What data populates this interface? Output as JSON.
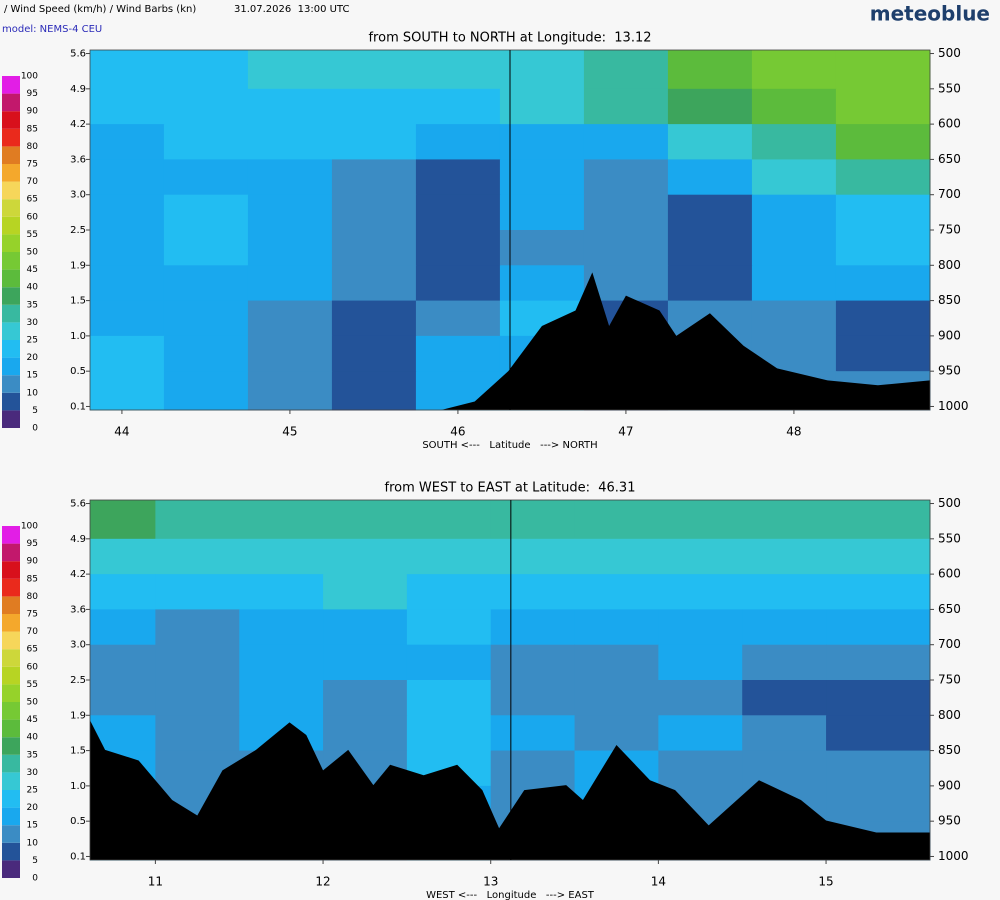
{
  "header": {
    "title": "/ Wind Speed (km/h) / Wind Barbs (kn)",
    "time": "31.07.2026  13:00 UTC",
    "model": "model: NEMS-4 CEU",
    "brand": "meteoblue"
  },
  "chart_data": [
    {
      "type": "contour",
      "title": "from SOUTH to NORTH at Longitude:  13.12",
      "x_label": "SOUTH <---   Latitude   ---> NORTH",
      "xlim": [
        43.81,
        48.81
      ],
      "xticks": [
        44,
        45,
        46,
        47,
        48
      ],
      "ylim": [
        1005,
        495
      ],
      "yticks": [
        500,
        550,
        600,
        650,
        700,
        750,
        800,
        850,
        900,
        950,
        1000
      ],
      "height_ticks": [
        {
          "value": 500,
          "label": "5.6"
        },
        {
          "value": 550,
          "label": "4.9"
        },
        {
          "value": 600,
          "label": "4.2"
        },
        {
          "value": 650,
          "label": "3.6"
        },
        {
          "value": 700,
          "label": "3.0"
        },
        {
          "value": 750,
          "label": "2.5"
        },
        {
          "value": 800,
          "label": "1.9"
        },
        {
          "value": 850,
          "label": "1.5"
        },
        {
          "value": 900,
          "label": "1.0"
        },
        {
          "value": 950,
          "label": "0.5"
        },
        {
          "value": 1000,
          "label": "0.1"
        }
      ],
      "crossing_x": 46.31,
      "field": {
        "x": [
          44.0,
          44.5,
          45.0,
          45.5,
          46.0,
          46.5,
          47.0,
          47.5,
          48.0,
          48.5
        ],
        "p": [
          525,
          575,
          625,
          675,
          725,
          775,
          825,
          875,
          925,
          975
        ],
        "values": [
          [
            20,
            20,
            25,
            25,
            25,
            25,
            30,
            40,
            45,
            45
          ],
          [
            20,
            20,
            20,
            20,
            20,
            25,
            30,
            35,
            40,
            45
          ],
          [
            15,
            20,
            20,
            20,
            15,
            15,
            15,
            25,
            30,
            40
          ],
          [
            15,
            15,
            15,
            10,
            5,
            15,
            10,
            15,
            25,
            30
          ],
          [
            15,
            20,
            15,
            10,
            5,
            15,
            10,
            5,
            15,
            20
          ],
          [
            15,
            20,
            15,
            10,
            5,
            10,
            10,
            5,
            15,
            20
          ],
          [
            15,
            15,
            15,
            10,
            5,
            15,
            10,
            5,
            15,
            15
          ],
          [
            15,
            15,
            10,
            5,
            10,
            20,
            5,
            10,
            10,
            5
          ],
          [
            20,
            15,
            10,
            5,
            15,
            15,
            5,
            10,
            10,
            5
          ],
          [
            20,
            15,
            10,
            5,
            15,
            15,
            5,
            10,
            10,
            10
          ]
        ]
      },
      "terrain": {
        "x": [
          43.81,
          45.9,
          46.1,
          46.3,
          46.5,
          46.7,
          46.8,
          46.9,
          47.0,
          47.2,
          47.3,
          47.5,
          47.7,
          47.9,
          48.2,
          48.5,
          48.81
        ],
        "p": [
          1005,
          1005,
          993,
          950,
          886,
          864,
          810,
          886,
          843,
          864,
          900,
          868,
          914,
          946,
          963,
          970,
          963
        ]
      },
      "colorscale": {
        "levels": [
          0,
          5,
          10,
          15,
          20,
          25,
          30,
          35,
          40,
          45,
          50,
          55,
          60,
          65,
          70,
          75,
          80,
          85,
          90,
          95,
          100
        ],
        "colors": [
          "#4a2a7c",
          "#235399",
          "#3b8cc4",
          "#19a8ee",
          "#22bdf2",
          "#36c8d4",
          "#38b9a0",
          "#3da55c",
          "#5cbb3c",
          "#76c934",
          "#96d22a",
          "#b7d423",
          "#cdd73a",
          "#f6d65a",
          "#f4a82c",
          "#e07c22",
          "#ea2a1c",
          "#d8101c",
          "#c2186c",
          "#e21ee6"
        ]
      }
    },
    {
      "type": "contour",
      "title": "from WEST to EAST at Latitude:  46.31",
      "x_label": "WEST <---   Longitude   ---> EAST",
      "xlim": [
        10.61,
        15.62
      ],
      "xticks": [
        11,
        12,
        13,
        14,
        15
      ],
      "ylim": [
        1005,
        495
      ],
      "yticks": [
        500,
        550,
        600,
        650,
        700,
        750,
        800,
        850,
        900,
        950,
        1000
      ],
      "height_ticks": [
        {
          "value": 500,
          "label": "5.6"
        },
        {
          "value": 550,
          "label": "4.9"
        },
        {
          "value": 600,
          "label": "4.2"
        },
        {
          "value": 650,
          "label": "3.6"
        },
        {
          "value": 700,
          "label": "3.0"
        },
        {
          "value": 750,
          "label": "2.5"
        },
        {
          "value": 800,
          "label": "1.9"
        },
        {
          "value": 850,
          "label": "1.5"
        },
        {
          "value": 900,
          "label": "1.0"
        },
        {
          "value": 950,
          "label": "0.5"
        },
        {
          "value": 1000,
          "label": "0.1"
        }
      ],
      "crossing_x": 13.12,
      "field": {
        "x": [
          10.75,
          11.25,
          11.75,
          12.25,
          12.75,
          13.25,
          13.75,
          14.25,
          14.75,
          15.25
        ],
        "p": [
          525,
          575,
          625,
          675,
          725,
          775,
          825,
          875,
          925,
          975
        ],
        "values": [
          [
            35,
            30,
            30,
            30,
            30,
            30,
            30,
            30,
            30,
            30
          ],
          [
            25,
            25,
            25,
            25,
            25,
            25,
            25,
            25,
            25,
            25
          ],
          [
            20,
            20,
            20,
            25,
            20,
            20,
            20,
            20,
            20,
            20
          ],
          [
            15,
            10,
            15,
            15,
            20,
            15,
            15,
            15,
            15,
            15
          ],
          [
            10,
            10,
            15,
            15,
            15,
            10,
            10,
            15,
            10,
            10
          ],
          [
            10,
            10,
            15,
            10,
            20,
            10,
            10,
            10,
            5,
            5
          ],
          [
            15,
            10,
            15,
            10,
            20,
            15,
            10,
            15,
            10,
            5
          ],
          [
            15,
            10,
            10,
            10,
            20,
            10,
            15,
            10,
            10,
            10
          ],
          [
            15,
            10,
            10,
            10,
            15,
            10,
            15,
            10,
            10,
            10
          ],
          [
            15,
            10,
            10,
            10,
            15,
            10,
            10,
            10,
            10,
            10
          ]
        ]
      },
      "terrain": {
        "x": [
          10.61,
          10.7,
          10.9,
          11.0,
          11.1,
          11.25,
          11.4,
          11.6,
          11.8,
          11.9,
          12.0,
          12.15,
          12.3,
          12.4,
          12.6,
          12.8,
          12.95,
          13.05,
          13.2,
          13.45,
          13.55,
          13.75,
          13.95,
          14.1,
          14.3,
          14.6,
          14.85,
          15.0,
          15.3,
          15.62
        ],
        "p": [
          807,
          849,
          864,
          892,
          920,
          942,
          878,
          849,
          810,
          828,
          878,
          849,
          899,
          870,
          885,
          870,
          906,
          960,
          906,
          899,
          920,
          842,
          892,
          906,
          956,
          892,
          920,
          949,
          966,
          966
        ]
      },
      "colorscale": {
        "levels": [
          0,
          5,
          10,
          15,
          20,
          25,
          30,
          35,
          40,
          45,
          50,
          55,
          60,
          65,
          70,
          75,
          80,
          85,
          90,
          95,
          100
        ],
        "colors": [
          "#4a2a7c",
          "#235399",
          "#3b8cc4",
          "#19a8ee",
          "#22bdf2",
          "#36c8d4",
          "#38b9a0",
          "#3da55c",
          "#5cbb3c",
          "#76c934",
          "#96d22a",
          "#b7d423",
          "#cdd73a",
          "#f6d65a",
          "#f4a82c",
          "#e07c22",
          "#ea2a1c",
          "#d8101c",
          "#c2186c",
          "#e21ee6"
        ]
      }
    }
  ]
}
